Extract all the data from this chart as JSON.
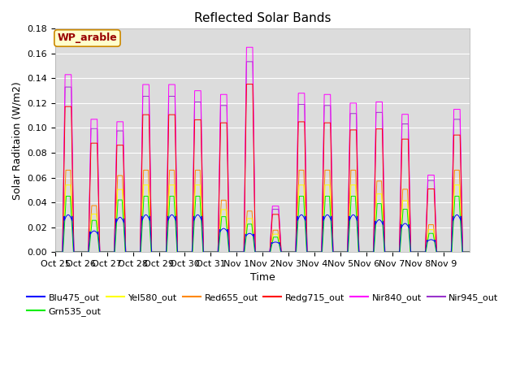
{
  "title": "Reflected Solar Bands",
  "ylabel": "Solar Raditaion (W/m2)",
  "xlabel": "Time",
  "annotation": "WP_arable",
  "ylim": [
    0,
    0.18
  ],
  "yticks": [
    0.0,
    0.02,
    0.04,
    0.06,
    0.08,
    0.1,
    0.12,
    0.14,
    0.16,
    0.18
  ],
  "background_color": "#dcdcdc",
  "grid_color": "#ffffff",
  "series": [
    {
      "name": "Blu475_out",
      "color": "#0000ff"
    },
    {
      "name": "Grn535_out",
      "color": "#00ee00"
    },
    {
      "name": "Yel580_out",
      "color": "#ffff00"
    },
    {
      "name": "Red655_out",
      "color": "#ff8800"
    },
    {
      "name": "Redg715_out",
      "color": "#ff0000"
    },
    {
      "name": "Nir840_out",
      "color": "#ff00ff"
    },
    {
      "name": "Nir945_out",
      "color": "#9933cc"
    }
  ],
  "xtick_labels": [
    "Oct 25",
    "Oct 26",
    "Oct 27",
    "Oct 28",
    "Oct 29",
    "Oct 30",
    "Oct 31",
    "Nov 1",
    "Nov 2",
    "Nov 3",
    "Nov 4",
    "Nov 5",
    "Nov 6",
    "Nov 7",
    "Nov 8",
    "Nov 9"
  ],
  "day_peaks_nir840": [
    0.143,
    0.107,
    0.105,
    0.135,
    0.135,
    0.13,
    0.127,
    0.165,
    0.037,
    0.128,
    0.127,
    0.12,
    0.121,
    0.111,
    0.062,
    0.115
  ],
  "day_peaks_blu": [
    0.03,
    0.017,
    0.028,
    0.03,
    0.03,
    0.03,
    0.019,
    0.015,
    0.008,
    0.03,
    0.03,
    0.03,
    0.026,
    0.023,
    0.01,
    0.03
  ],
  "title_fontsize": 11,
  "label_fontsize": 9,
  "tick_fontsize": 8
}
